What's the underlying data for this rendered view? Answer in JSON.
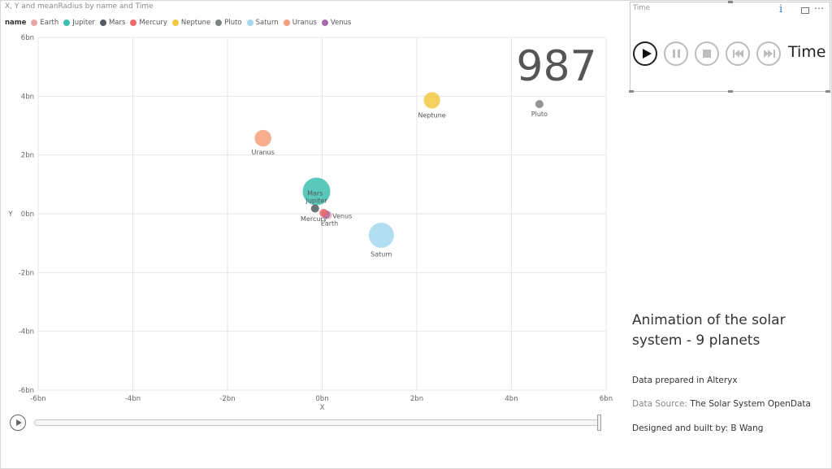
{
  "chart_title": "X, Y and meanRadius by name and Time",
  "legend": {
    "title": "name",
    "items": [
      {
        "name": "Earth",
        "color": "#E8A9A9"
      },
      {
        "name": "Jupiter",
        "color": "#3DBFB0"
      },
      {
        "name": "Mars",
        "color": "#555B5F"
      },
      {
        "name": "Mercury",
        "color": "#E96A6A"
      },
      {
        "name": "Neptune",
        "color": "#F2C843"
      },
      {
        "name": "Pluto",
        "color": "#7D8484"
      },
      {
        "name": "Saturn",
        "color": "#A3D9EE"
      },
      {
        "name": "Uranus",
        "color": "#F4A07A"
      },
      {
        "name": "Venus",
        "color": "#A56BA8"
      }
    ]
  },
  "chart_data": {
    "type": "scatter",
    "title": "X, Y and meanRadius by name and Time",
    "xlabel": "X",
    "ylabel": "Y",
    "xlim": [
      -6,
      6
    ],
    "ylim": [
      -6,
      6
    ],
    "xticks": [
      -6,
      -4,
      -2,
      0,
      2,
      4,
      6
    ],
    "yticks": [
      -6,
      -4,
      -2,
      0,
      2,
      4,
      6
    ],
    "xtick_labels": [
      "-6bn",
      "-4bn",
      "-2bn",
      "0bn",
      "2bn",
      "4bn",
      "6bn"
    ],
    "ytick_labels": [
      "-6bn",
      "-4bn",
      "-2bn",
      "0bn",
      "2bn",
      "4bn",
      "6bn"
    ],
    "grid": true,
    "legend_position": "top-left",
    "points": [
      {
        "name": "Jupiter",
        "x": -0.12,
        "y": 0.76,
        "r": 69911
      },
      {
        "name": "Saturn",
        "x": 1.25,
        "y": -0.73,
        "r": 58232
      },
      {
        "name": "Uranus",
        "x": -1.25,
        "y": 2.57,
        "r": 25362
      },
      {
        "name": "Neptune",
        "x": 2.32,
        "y": 3.86,
        "r": 24622
      },
      {
        "name": "Earth",
        "x": 0.12,
        "y": -0.04,
        "r": 6371
      },
      {
        "name": "Venus",
        "x": 0.08,
        "y": -0.02,
        "r": 6052
      },
      {
        "name": "Mars",
        "x": -0.15,
        "y": 0.18,
        "r": 3390
      },
      {
        "name": "Mercury",
        "x": 0.03,
        "y": 0.03,
        "r": 2440
      },
      {
        "name": "Pluto",
        "x": 4.59,
        "y": 3.73,
        "r": 1188
      }
    ]
  },
  "current_time": "987",
  "time_slicer": {
    "title": "Time",
    "info_icon": "info-icon",
    "label": "Time"
  },
  "info": {
    "title": "Animation of the solar system - 9 planets",
    "prepared": "Data prepared in Alteryx",
    "source_label": "Data Source:",
    "source_value": "The Solar System OpenData",
    "designed": "Designed and built by: B Wang"
  }
}
